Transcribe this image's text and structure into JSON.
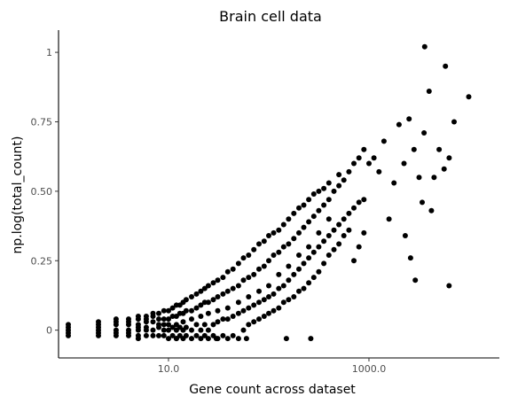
{
  "chart_data": {
    "type": "scatter",
    "title": "Brain cell data",
    "xlabel": "Gene count across dataset",
    "ylabel": "np.log(total_count)",
    "x_scale": "log10",
    "xlim": [
      0.8,
      20000
    ],
    "ylim": [
      -0.1,
      1.08
    ],
    "x_ticks": [
      {
        "value": 10,
        "label": "10.0"
      },
      {
        "value": 1000,
        "label": "1000.0"
      }
    ],
    "y_ticks": [
      {
        "value": 0,
        "label": "0"
      },
      {
        "value": 0.25,
        "label": "0.25"
      },
      {
        "value": 0.5,
        "label": "0.50"
      },
      {
        "value": 0.75,
        "label": "0.75"
      },
      {
        "value": 1,
        "label": "1"
      }
    ],
    "grid": false,
    "marker_color": "#000000",
    "points": [
      [
        1,
        0.0
      ],
      [
        1,
        0.01
      ],
      [
        1,
        -0.01
      ],
      [
        1,
        0.02
      ],
      [
        1,
        -0.02
      ],
      [
        2,
        0.0
      ],
      [
        2,
        0.01
      ],
      [
        2,
        -0.01
      ],
      [
        2,
        0.02
      ],
      [
        2,
        0.03
      ],
      [
        2,
        -0.02
      ],
      [
        3,
        0.0
      ],
      [
        3,
        0.02
      ],
      [
        3,
        0.03
      ],
      [
        3,
        -0.01
      ],
      [
        3,
        0.04
      ],
      [
        3,
        -0.02
      ],
      [
        4,
        0.0
      ],
      [
        4,
        0.02
      ],
      [
        4,
        0.04
      ],
      [
        4,
        -0.01
      ],
      [
        4,
        0.03
      ],
      [
        4,
        -0.02
      ],
      [
        5,
        0.0
      ],
      [
        5,
        0.02
      ],
      [
        5,
        0.04
      ],
      [
        5,
        -0.02
      ],
      [
        5,
        0.05
      ],
      [
        5,
        0.01
      ],
      [
        6,
        0.0
      ],
      [
        6,
        0.03
      ],
      [
        6,
        0.05
      ],
      [
        6,
        -0.02
      ],
      [
        6,
        0.01
      ],
      [
        6,
        0.04
      ],
      [
        7,
        0.0
      ],
      [
        7,
        0.03
      ],
      [
        7,
        0.05
      ],
      [
        7,
        -0.02
      ],
      [
        7,
        0.06
      ],
      [
        8,
        0.01
      ],
      [
        8,
        0.04
      ],
      [
        8,
        -0.02
      ],
      [
        8,
        0.06
      ],
      [
        8,
        0.02
      ],
      [
        9,
        0.0
      ],
      [
        9,
        0.04
      ],
      [
        9,
        -0.02
      ],
      [
        9,
        0.07
      ],
      [
        9,
        0.02
      ],
      [
        10,
        0.0
      ],
      [
        10,
        0.04
      ],
      [
        10,
        -0.03
      ],
      [
        10,
        0.07
      ],
      [
        10,
        0.02
      ],
      [
        11,
        0.01
      ],
      [
        11,
        0.05
      ],
      [
        11,
        -0.02
      ],
      [
        11,
        0.08
      ],
      [
        12,
        0.0
      ],
      [
        12,
        0.05
      ],
      [
        12,
        -0.03
      ],
      [
        12,
        0.09
      ],
      [
        12,
        0.02
      ],
      [
        13,
        0.01
      ],
      [
        13,
        0.06
      ],
      [
        13,
        -0.02
      ],
      [
        13,
        0.09
      ],
      [
        14,
        0.0
      ],
      [
        14,
        0.06
      ],
      [
        14,
        -0.03
      ],
      [
        14,
        0.1
      ],
      [
        14,
        0.03
      ],
      [
        15,
        0.01
      ],
      [
        15,
        0.07
      ],
      [
        15,
        -0.02
      ],
      [
        15,
        0.11
      ],
      [
        17,
        0.0
      ],
      [
        17,
        0.07
      ],
      [
        17,
        -0.03
      ],
      [
        17,
        0.12
      ],
      [
        17,
        0.04
      ],
      [
        19,
        0.02
      ],
      [
        19,
        0.08
      ],
      [
        19,
        -0.02
      ],
      [
        19,
        0.13
      ],
      [
        21,
        0.0
      ],
      [
        21,
        0.09
      ],
      [
        21,
        -0.03
      ],
      [
        21,
        0.14
      ],
      [
        21,
        0.05
      ],
      [
        23,
        0.02
      ],
      [
        23,
        0.1
      ],
      [
        23,
        -0.02
      ],
      [
        23,
        0.15
      ],
      [
        25,
        0.0
      ],
      [
        25,
        0.1
      ],
      [
        25,
        -0.03
      ],
      [
        25,
        0.16
      ],
      [
        25,
        0.06
      ],
      [
        28,
        0.02
      ],
      [
        28,
        0.11
      ],
      [
        28,
        -0.02
      ],
      [
        28,
        0.17
      ],
      [
        31,
        0.03
      ],
      [
        31,
        0.12
      ],
      [
        31,
        -0.03
      ],
      [
        31,
        0.18
      ],
      [
        31,
        0.07
      ],
      [
        35,
        0.04
      ],
      [
        35,
        0.13
      ],
      [
        35,
        -0.02
      ],
      [
        35,
        0.19
      ],
      [
        39,
        0.04
      ],
      [
        39,
        0.14
      ],
      [
        39,
        -0.03
      ],
      [
        39,
        0.21
      ],
      [
        39,
        0.08
      ],
      [
        44,
        0.05
      ],
      [
        44,
        0.15
      ],
      [
        44,
        -0.02
      ],
      [
        44,
        0.22
      ],
      [
        50,
        0.06
      ],
      [
        50,
        0.16
      ],
      [
        50,
        -0.03
      ],
      [
        50,
        0.24
      ],
      [
        50,
        0.1
      ],
      [
        56,
        0.07
      ],
      [
        56,
        0.18
      ],
      [
        56,
        0.0
      ],
      [
        56,
        0.26
      ],
      [
        63,
        0.08
      ],
      [
        63,
        0.19
      ],
      [
        63,
        0.02
      ],
      [
        63,
        0.27
      ],
      [
        63,
        0.12
      ],
      [
        71,
        0.09
      ],
      [
        71,
        0.2
      ],
      [
        71,
        0.03
      ],
      [
        71,
        0.29
      ],
      [
        80,
        0.1
      ],
      [
        80,
        0.22
      ],
      [
        80,
        0.04
      ],
      [
        80,
        0.31
      ],
      [
        80,
        0.14
      ],
      [
        90,
        0.11
      ],
      [
        90,
        0.23
      ],
      [
        90,
        0.05
      ],
      [
        90,
        0.32
      ],
      [
        100,
        0.12
      ],
      [
        100,
        0.25
      ],
      [
        100,
        0.06
      ],
      [
        100,
        0.34
      ],
      [
        100,
        0.16
      ],
      [
        112,
        0.13
      ],
      [
        112,
        0.27
      ],
      [
        112,
        0.07
      ],
      [
        112,
        0.35
      ],
      [
        126,
        0.15
      ],
      [
        126,
        0.28
      ],
      [
        126,
        0.08
      ],
      [
        126,
        0.36
      ],
      [
        126,
        0.2
      ],
      [
        141,
        0.16
      ],
      [
        141,
        0.3
      ],
      [
        141,
        0.1
      ],
      [
        141,
        0.38
      ],
      [
        158,
        0.18
      ],
      [
        158,
        0.31
      ],
      [
        158,
        0.11
      ],
      [
        158,
        0.4
      ],
      [
        158,
        0.23
      ],
      [
        178,
        0.2
      ],
      [
        178,
        0.33
      ],
      [
        178,
        0.12
      ],
      [
        178,
        0.42
      ],
      [
        200,
        0.22
      ],
      [
        200,
        0.35
      ],
      [
        200,
        0.14
      ],
      [
        200,
        0.44
      ],
      [
        200,
        0.27
      ],
      [
        224,
        0.24
      ],
      [
        224,
        0.37
      ],
      [
        224,
        0.15
      ],
      [
        224,
        0.45
      ],
      [
        251,
        0.26
      ],
      [
        251,
        0.39
      ],
      [
        251,
        0.17
      ],
      [
        251,
        0.47
      ],
      [
        251,
        0.3
      ],
      [
        282,
        0.28
      ],
      [
        282,
        0.41
      ],
      [
        282,
        0.19
      ],
      [
        282,
        0.49
      ],
      [
        316,
        0.3
      ],
      [
        316,
        0.43
      ],
      [
        316,
        0.21
      ],
      [
        316,
        0.5
      ],
      [
        316,
        0.35
      ],
      [
        355,
        0.32
      ],
      [
        355,
        0.45
      ],
      [
        355,
        0.24
      ],
      [
        355,
        0.51
      ],
      [
        398,
        0.34
      ],
      [
        398,
        0.47
      ],
      [
        398,
        0.27
      ],
      [
        398,
        0.53
      ],
      [
        398,
        0.4
      ],
      [
        447,
        0.36
      ],
      [
        447,
        0.5
      ],
      [
        447,
        0.29
      ],
      [
        501,
        0.38
      ],
      [
        501,
        0.52
      ],
      [
        501,
        0.31
      ],
      [
        501,
        0.56
      ],
      [
        562,
        0.4
      ],
      [
        562,
        0.54
      ],
      [
        562,
        0.34
      ],
      [
        631,
        0.42
      ],
      [
        631,
        0.57
      ],
      [
        631,
        0.36
      ],
      [
        708,
        0.44
      ],
      [
        708,
        0.6
      ],
      [
        708,
        0.25
      ],
      [
        794,
        0.46
      ],
      [
        794,
        0.62
      ],
      [
        794,
        0.3
      ],
      [
        891,
        0.47
      ],
      [
        891,
        0.65
      ],
      [
        891,
        0.35
      ],
      [
        5,
        -0.03
      ],
      [
        12,
        -0.03
      ],
      [
        30,
        -0.03
      ],
      [
        60,
        -0.03
      ],
      [
        150,
        -0.03
      ],
      [
        263,
        -0.03
      ],
      [
        1000,
        0.6
      ],
      [
        1122,
        0.62
      ],
      [
        1259,
        0.57
      ],
      [
        1413,
        0.68
      ],
      [
        1585,
        0.4
      ],
      [
        1778,
        0.53
      ],
      [
        1995,
        0.74
      ],
      [
        2239,
        0.6
      ],
      [
        2512,
        0.76
      ],
      [
        2818,
        0.65
      ],
      [
        3162,
        0.55
      ],
      [
        3548,
        0.71
      ],
      [
        3981,
        0.86
      ],
      [
        4467,
        0.55
      ],
      [
        5012,
        0.65
      ],
      [
        5623,
        0.58
      ],
      [
        6310,
        0.62
      ],
      [
        7079,
        0.75
      ],
      [
        2600,
        0.26
      ],
      [
        2900,
        0.18
      ],
      [
        3400,
        0.46
      ],
      [
        4200,
        0.43
      ],
      [
        2300,
        0.34
      ],
      [
        3600,
        1.02
      ],
      [
        5800,
        0.95
      ],
      [
        6300,
        0.16
      ],
      [
        9900,
        0.84
      ]
    ]
  }
}
